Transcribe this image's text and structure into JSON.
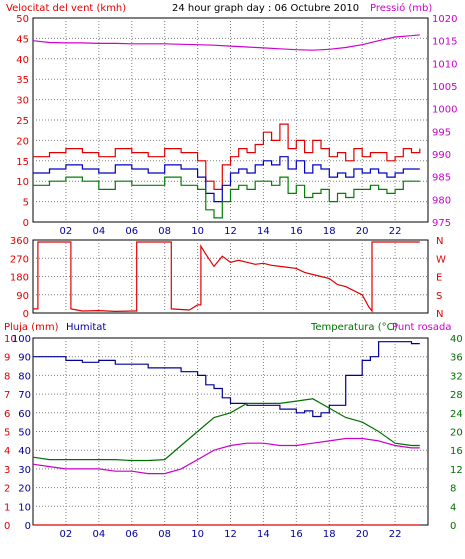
{
  "header": {
    "left_title": "Velocitat del vent (kmh)",
    "center_title": "24 hour graph day : 06 Octubre 2010",
    "right_title": "Pressió (mb)"
  },
  "colors": {
    "wind_max": "#e00000",
    "wind_avg": "#0000c0",
    "wind_min": "#008000",
    "pressure": "#d000d0",
    "direction": "#e00000",
    "rain": "#e00000",
    "humidity": "#000099",
    "temperature": "#007000",
    "dewpoint": "#cc00cc",
    "left_axis": "#e00000",
    "right_axis": "#cc00cc",
    "grid": "#808080"
  },
  "chart_data": [
    {
      "type": "line",
      "name": "wind-pressure",
      "x_ticks": [
        "02",
        "04",
        "06",
        "08",
        "10",
        "12",
        "14",
        "16",
        "18",
        "20",
        "22"
      ],
      "xlim": [
        0,
        24
      ],
      "ylim_left": [
        0,
        50
      ],
      "yticks_left": [
        0,
        5,
        10,
        15,
        20,
        25,
        30,
        35,
        40,
        45,
        50
      ],
      "ylim_right": [
        975,
        1020
      ],
      "yticks_right": [
        975,
        980,
        985,
        990,
        995,
        1000,
        1005,
        1010,
        1015,
        1020
      ],
      "grid": true,
      "series": [
        {
          "key": "wind_max",
          "axis": "left",
          "x": [
            0,
            1,
            2,
            3,
            4,
            5,
            6,
            7,
            8,
            9,
            10,
            10.5,
            11,
            11.5,
            12,
            12.5,
            13,
            13.5,
            14,
            14.5,
            15,
            15.5,
            16,
            16.5,
            17,
            17.5,
            18,
            18.5,
            19,
            19.5,
            20,
            20.5,
            21,
            21.5,
            22,
            22.5,
            23,
            23.5
          ],
          "y": [
            16,
            17,
            18,
            17,
            16,
            18,
            17,
            16,
            18,
            17,
            15,
            10,
            8,
            14,
            16,
            18,
            17,
            19,
            22,
            20,
            24,
            18,
            20,
            17,
            20,
            18,
            16,
            17,
            15,
            18,
            16,
            17,
            17,
            15,
            16,
            18,
            17,
            18
          ]
        },
        {
          "key": "wind_avg",
          "axis": "left",
          "x": [
            0,
            1,
            2,
            3,
            4,
            5,
            6,
            7,
            8,
            9,
            10,
            10.5,
            11,
            11.5,
            12,
            12.5,
            13,
            13.5,
            14,
            14.5,
            15,
            15.5,
            16,
            16.5,
            17,
            17.5,
            18,
            18.5,
            19,
            19.5,
            20,
            20.5,
            21,
            21.5,
            22,
            22.5,
            23,
            23.5
          ],
          "y": [
            12,
            13,
            14,
            13,
            12,
            14,
            13,
            12,
            14,
            13,
            11,
            7,
            5,
            9,
            12,
            13,
            12,
            14,
            15,
            14,
            16,
            13,
            15,
            12,
            14,
            13,
            11,
            12,
            11,
            13,
            12,
            13,
            12,
            11,
            12,
            13,
            13,
            13
          ]
        },
        {
          "key": "wind_min",
          "axis": "left",
          "x": [
            0,
            1,
            2,
            3,
            4,
            5,
            6,
            7,
            8,
            9,
            10,
            10.5,
            11,
            11.5,
            12,
            12.5,
            13,
            13.5,
            14,
            14.5,
            15,
            15.5,
            16,
            16.5,
            17,
            17.5,
            18,
            18.5,
            19,
            19.5,
            20,
            20.5,
            21,
            21.5,
            22,
            22.5,
            23,
            23.5
          ],
          "y": [
            9,
            10,
            11,
            10,
            8,
            10,
            9,
            9,
            11,
            9,
            8,
            3,
            1,
            5,
            8,
            9,
            8,
            10,
            10,
            9,
            11,
            7,
            9,
            6,
            7,
            8,
            5,
            7,
            6,
            8,
            8,
            9,
            8,
            7,
            8,
            10,
            10,
            10
          ]
        },
        {
          "key": "pressure",
          "axis": "right",
          "x": [
            0,
            1,
            2,
            3,
            4,
            5,
            6,
            7,
            8,
            9,
            10,
            11,
            12,
            13,
            14,
            15,
            16,
            17,
            18,
            19,
            20,
            21,
            22,
            23,
            23.5
          ],
          "y": [
            1015,
            1014.6,
            1014.5,
            1014.5,
            1014.4,
            1014.4,
            1014.3,
            1014.3,
            1014.3,
            1014.2,
            1014.1,
            1014,
            1013.8,
            1013.6,
            1013.4,
            1013.2,
            1013,
            1012.9,
            1013.1,
            1013.5,
            1014.1,
            1015,
            1015.8,
            1016.1,
            1016.3
          ]
        }
      ]
    },
    {
      "type": "line",
      "name": "wind-direction",
      "x_ticks": [
        "02",
        "04",
        "06",
        "08",
        "10",
        "12",
        "14",
        "16",
        "18",
        "20",
        "22"
      ],
      "xlim": [
        0,
        24
      ],
      "ylim": [
        0,
        360
      ],
      "yticks_left": [
        0,
        90,
        180,
        270,
        360
      ],
      "yticks_right": [
        "N",
        "S",
        "E",
        "W",
        "N"
      ],
      "grid": true,
      "series": [
        {
          "key": "direction",
          "x": [
            0,
            0.3,
            0.3,
            2.3,
            2.3,
            3,
            4,
            5,
            6,
            6.3,
            6.3,
            8.4,
            8.4,
            9.5,
            10,
            10.2,
            10.2,
            10.5,
            11,
            11.5,
            12,
            12.5,
            13,
            13.5,
            14,
            14.5,
            15,
            15.5,
            16,
            16.5,
            17,
            17.5,
            18,
            18.5,
            19,
            19.5,
            20,
            20.4,
            20.6,
            20.6,
            23.5
          ],
          "y": [
            20,
            20,
            350,
            350,
            20,
            10,
            12,
            8,
            10,
            10,
            350,
            350,
            20,
            15,
            40,
            40,
            330,
            290,
            230,
            280,
            250,
            260,
            250,
            240,
            245,
            235,
            230,
            225,
            220,
            200,
            190,
            180,
            170,
            140,
            130,
            110,
            90,
            30,
            10,
            350,
            350
          ]
        }
      ]
    },
    {
      "type": "line",
      "name": "rain-humidity-temperature",
      "x_ticks": [
        "02",
        "04",
        "06",
        "08",
        "10",
        "12",
        "14",
        "16",
        "18",
        "20",
        "22"
      ],
      "xlim": [
        0,
        24
      ],
      "left_title": "Pluja (mm)",
      "left_title2": "Humitat",
      "right_title": "Temperatura (°C)",
      "right_title2": "Punt rosada",
      "ylim_left": [
        0,
        100
      ],
      "yticks_left_rain": [
        0,
        1,
        2,
        3,
        4,
        5,
        6,
        7,
        8,
        9,
        10
      ],
      "yticks_left_hum": [
        0,
        10,
        20,
        30,
        40,
        50,
        60,
        70,
        80,
        90,
        100
      ],
      "ylim_right": [
        0,
        40
      ],
      "yticks_right": [
        0,
        4,
        8,
        12,
        16,
        20,
        24,
        28,
        32,
        36,
        40
      ],
      "grid": true,
      "series": [
        {
          "key": "rain",
          "axis": "left",
          "x": [
            0,
            23.5
          ],
          "y": [
            0,
            0
          ]
        },
        {
          "key": "humidity",
          "axis": "left",
          "x": [
            0,
            1,
            2,
            3,
            4,
            5,
            6,
            7,
            8,
            9,
            10,
            10.5,
            11,
            11.5,
            12,
            13,
            14,
            15,
            16,
            16.5,
            17,
            17.5,
            18,
            19,
            20,
            20.5,
            21,
            22,
            23,
            23.5
          ],
          "y": [
            90,
            90,
            88,
            87,
            88,
            86,
            86,
            84,
            84,
            82,
            80,
            75,
            73,
            68,
            65,
            64,
            64,
            62,
            60,
            61,
            58,
            60,
            64,
            80,
            88,
            90,
            98,
            98,
            97,
            97
          ]
        },
        {
          "key": "temperature",
          "axis": "right",
          "x": [
            0,
            1,
            2,
            3,
            4,
            5,
            6,
            7,
            8,
            9,
            10,
            11,
            12,
            13,
            14,
            15,
            16,
            17,
            18,
            19,
            20,
            21,
            22,
            23,
            23.5
          ],
          "y": [
            14.5,
            14,
            14,
            14,
            14,
            14,
            13.8,
            13.8,
            14,
            17,
            20,
            23,
            24,
            26,
            26,
            26,
            26.5,
            27,
            25,
            23,
            22,
            20,
            17.5,
            17,
            17
          ]
        },
        {
          "key": "dewpoint",
          "axis": "right",
          "x": [
            0,
            1,
            2,
            3,
            4,
            5,
            6,
            7,
            8,
            9,
            10,
            11,
            12,
            13,
            14,
            15,
            16,
            17,
            18,
            19,
            20,
            21,
            22,
            23,
            23.5
          ],
          "y": [
            13,
            12.5,
            12,
            12,
            12,
            11.5,
            11.5,
            11,
            11,
            12,
            14,
            16,
            17,
            17.5,
            17.5,
            17,
            17,
            17.5,
            18,
            18.5,
            18.5,
            18,
            17,
            16.5,
            16.5
          ]
        }
      ]
    }
  ]
}
